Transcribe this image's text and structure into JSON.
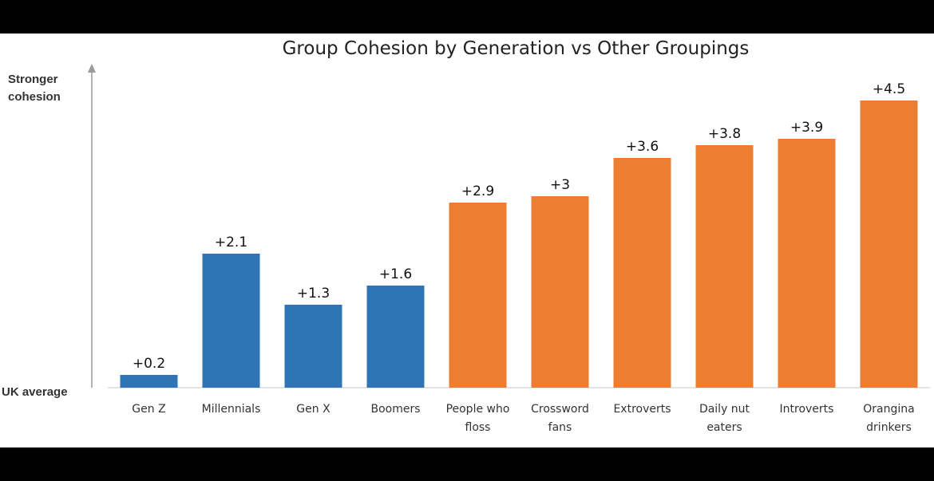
{
  "chart_data": {
    "type": "bar",
    "title": "Group Cohesion by Generation vs Other Groupings",
    "y_axis_top_label": [
      "Stronger",
      "cohesion"
    ],
    "y_axis_baseline_label": "UK average",
    "ylim": [
      0,
      4.8
    ],
    "categories": [
      [
        "Gen Z"
      ],
      [
        "Millennials"
      ],
      [
        "Gen X"
      ],
      [
        "Boomers"
      ],
      [
        "People who",
        "floss"
      ],
      [
        "Crossword",
        "fans"
      ],
      [
        "Extroverts"
      ],
      [
        "Daily nut",
        "eaters"
      ],
      [
        "Introverts"
      ],
      [
        "Orangina",
        "drinkers"
      ]
    ],
    "values": [
      0.2,
      2.1,
      1.3,
      1.6,
      2.9,
      3.0,
      3.6,
      3.8,
      3.9,
      4.5
    ],
    "value_labels": [
      "+0.2",
      "+2.1",
      "+1.3",
      "+1.6",
      "+2.9",
      "+3",
      "+3.6",
      "+3.8",
      "+3.9",
      "+4.5"
    ],
    "bar_groups": [
      "generation",
      "generation",
      "generation",
      "generation",
      "other",
      "other",
      "other",
      "other",
      "other",
      "other"
    ],
    "colors": {
      "generation": "#2f75b6",
      "other": "#ed7d31",
      "axis": "#9a9a9a"
    },
    "grid": false,
    "legend": "none"
  }
}
